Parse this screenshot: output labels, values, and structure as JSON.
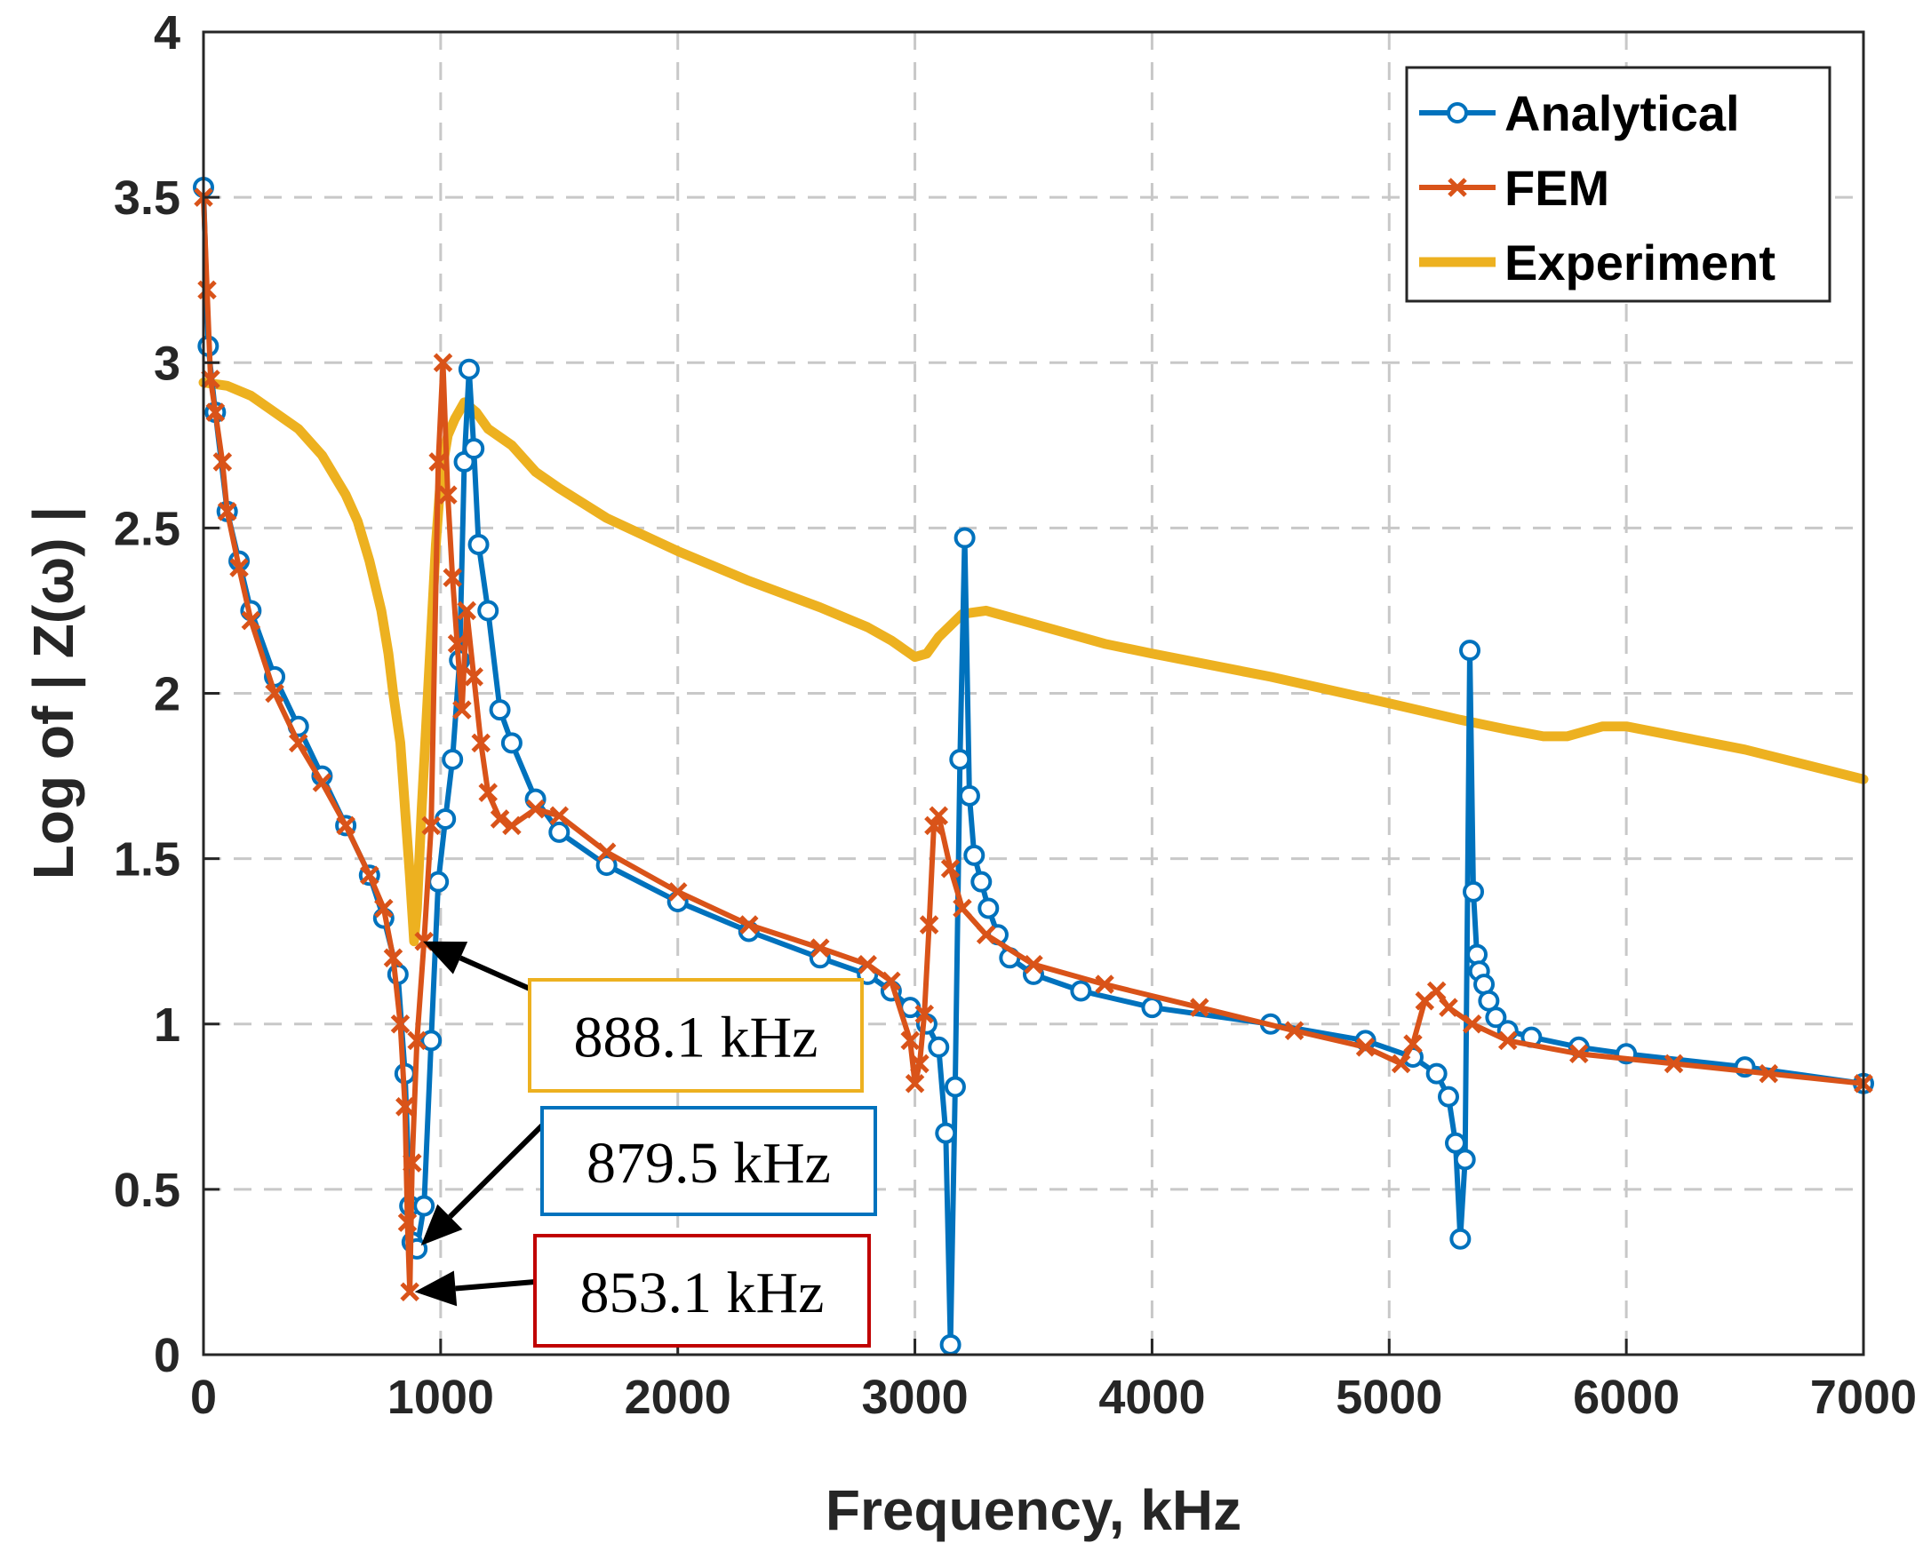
{
  "chart_data": {
    "type": "line",
    "title": "",
    "xlabel": "Frequency, kHz",
    "ylabel": "Log of | Z(ω) |",
    "xlim": [
      0,
      7000
    ],
    "ylim": [
      0,
      4
    ],
    "xticks": [
      "0",
      "1000",
      "2000",
      "3000",
      "4000",
      "5000",
      "6000",
      "7000"
    ],
    "yticks": [
      "0",
      "0.5",
      "1",
      "1.5",
      "2",
      "2.5",
      "3",
      "3.5",
      "4"
    ],
    "grid": true,
    "legend_position": "top-right",
    "series": [
      {
        "name": "Analytical",
        "color": "#0072BD",
        "marker": "circle",
        "x": [
          0,
          20,
          50,
          100,
          150,
          200,
          300,
          400,
          500,
          600,
          700,
          760,
          820,
          850,
          870,
          880,
          900,
          930,
          960,
          990,
          1020,
          1050,
          1080,
          1100,
          1120,
          1140,
          1160,
          1200,
          1250,
          1300,
          1400,
          1500,
          1700,
          2000,
          2300,
          2600,
          2800,
          2900,
          2980,
          3050,
          3100,
          3130,
          3150,
          3170,
          3190,
          3210,
          3230,
          3250,
          3280,
          3310,
          3350,
          3400,
          3500,
          3700,
          4000,
          4500,
          4900,
          5100,
          5200,
          5250,
          5280,
          5300,
          5320,
          5340,
          5355,
          5370,
          5380,
          5400,
          5420,
          5450,
          5500,
          5600,
          5800,
          6000,
          6500,
          7000
        ],
        "y": [
          3.53,
          3.05,
          2.85,
          2.55,
          2.4,
          2.25,
          2.05,
          1.9,
          1.75,
          1.6,
          1.45,
          1.32,
          1.15,
          0.85,
          0.45,
          0.34,
          0.32,
          0.45,
          0.95,
          1.43,
          1.62,
          1.8,
          2.1,
          2.7,
          2.98,
          2.74,
          2.45,
          2.25,
          1.95,
          1.85,
          1.68,
          1.58,
          1.48,
          1.37,
          1.28,
          1.2,
          1.15,
          1.1,
          1.05,
          1.0,
          0.93,
          0.67,
          0.03,
          0.81,
          1.8,
          2.47,
          1.69,
          1.51,
          1.43,
          1.35,
          1.27,
          1.2,
          1.15,
          1.1,
          1.05,
          1.0,
          0.95,
          0.9,
          0.85,
          0.78,
          0.64,
          0.35,
          0.59,
          2.13,
          1.4,
          1.21,
          1.16,
          1.12,
          1.07,
          1.02,
          0.98,
          0.96,
          0.93,
          0.91,
          0.87,
          0.82
        ]
      },
      {
        "name": "FEM",
        "color": "#D95319",
        "marker": "x",
        "x": [
          0,
          15,
          30,
          50,
          80,
          100,
          150,
          200,
          300,
          400,
          500,
          600,
          700,
          760,
          800,
          830,
          850,
          860,
          870,
          880,
          900,
          930,
          960,
          990,
          1010,
          1030,
          1050,
          1070,
          1090,
          1110,
          1140,
          1170,
          1200,
          1250,
          1300,
          1400,
          1500,
          1700,
          2000,
          2300,
          2600,
          2800,
          2900,
          2980,
          3000,
          3020,
          3040,
          3060,
          3080,
          3100,
          3150,
          3200,
          3300,
          3500,
          3800,
          4200,
          4600,
          4900,
          5050,
          5100,
          5150,
          5200,
          5250,
          5350,
          5500,
          5800,
          6200,
          6600,
          7000
        ],
        "y": [
          3.5,
          3.22,
          2.95,
          2.85,
          2.7,
          2.55,
          2.38,
          2.22,
          2.0,
          1.85,
          1.73,
          1.6,
          1.45,
          1.35,
          1.2,
          1.0,
          0.75,
          0.4,
          0.19,
          0.58,
          0.95,
          1.25,
          1.6,
          2.7,
          3.0,
          2.6,
          2.35,
          2.15,
          1.95,
          2.25,
          2.05,
          1.85,
          1.7,
          1.62,
          1.6,
          1.65,
          1.63,
          1.52,
          1.4,
          1.3,
          1.23,
          1.18,
          1.13,
          0.95,
          0.82,
          0.88,
          1.03,
          1.3,
          1.6,
          1.63,
          1.47,
          1.35,
          1.27,
          1.18,
          1.12,
          1.05,
          0.98,
          0.93,
          0.88,
          0.94,
          1.07,
          1.1,
          1.05,
          1.0,
          0.95,
          0.91,
          0.88,
          0.85,
          0.82
        ]
      },
      {
        "name": "Experiment",
        "color": "#EDB120",
        "marker": "none",
        "x": [
          0,
          100,
          200,
          300,
          400,
          500,
          600,
          650,
          700,
          750,
          780,
          800,
          830,
          850,
          870,
          888,
          900,
          920,
          950,
          980,
          1000,
          1030,
          1060,
          1100,
          1150,
          1200,
          1300,
          1400,
          1500,
          1700,
          2000,
          2300,
          2600,
          2800,
          2900,
          3000,
          3050,
          3100,
          3200,
          3300,
          3500,
          3800,
          4000,
          4500,
          5000,
          5300,
          5500,
          5650,
          5750,
          5900,
          6000,
          6500,
          7000
        ],
        "y": [
          2.94,
          2.93,
          2.9,
          2.85,
          2.8,
          2.72,
          2.6,
          2.52,
          2.4,
          2.25,
          2.12,
          2.0,
          1.85,
          1.65,
          1.45,
          1.25,
          1.35,
          1.65,
          2.05,
          2.45,
          2.65,
          2.78,
          2.83,
          2.88,
          2.85,
          2.8,
          2.75,
          2.67,
          2.62,
          2.53,
          2.43,
          2.34,
          2.26,
          2.2,
          2.16,
          2.11,
          2.12,
          2.17,
          2.24,
          2.25,
          2.21,
          2.15,
          2.12,
          2.05,
          1.97,
          1.92,
          1.89,
          1.87,
          1.87,
          1.9,
          1.9,
          1.83,
          1.74
        ]
      }
    ],
    "annotations": [
      {
        "text": "888.1 kHz",
        "color": "#EDB120",
        "point": [
          888.1,
          1.25
        ]
      },
      {
        "text": "879.5 kHz",
        "color": "#0072BD",
        "point": [
          879.5,
          0.33
        ]
      },
      {
        "text": "853.1 kHz",
        "color": "#C00000",
        "point": [
          853.1,
          0.19
        ]
      }
    ]
  }
}
